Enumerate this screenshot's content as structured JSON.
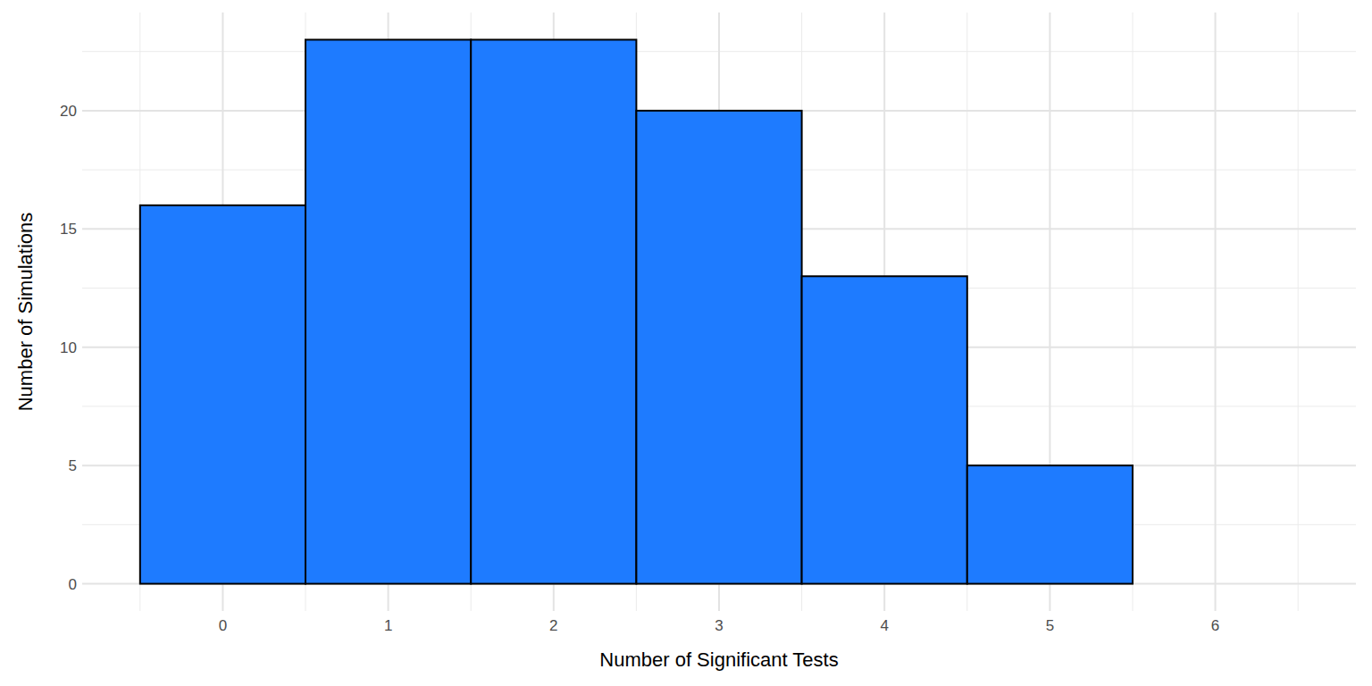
{
  "chart_data": {
    "type": "histogram",
    "x_label": "Number of Significant Tests",
    "y_label": "Number of Simulations",
    "bins": [
      -0.5,
      0.5,
      1.5,
      2.5,
      3.5,
      4.5,
      5.5,
      6.5
    ],
    "values": [
      16,
      23,
      23,
      20,
      13,
      5,
      0
    ],
    "color": "#1E7BFF",
    "xlim": [
      -0.85,
      6.85
    ],
    "xticks": [
      0,
      1,
      2,
      3,
      4,
      5,
      6
    ],
    "ylim": [
      -1.15,
      24.15
    ],
    "yticks": [
      0,
      5,
      10,
      15,
      20
    ],
    "grid": true
  }
}
